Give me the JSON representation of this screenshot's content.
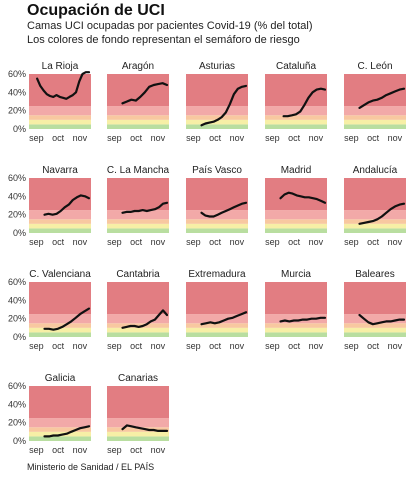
{
  "title": "Ocupación de UCI",
  "subtitle_line1": "Camas UCI ocupadas por pacientes Covid-19 (% del total)",
  "subtitle_line2": "Los colores de fondo representan el semáforo de riesgo",
  "source": "Ministerio de Sanidad / EL PAÍS",
  "colors": {
    "line": "#111111",
    "green": "#b9dea0",
    "yellow": "#f7efa6",
    "orange": "#f8c8a0",
    "light_red": "#f2a9a8",
    "red": "#e27d82"
  },
  "chart_data": {
    "type": "line",
    "x_ticks": [
      "sep",
      "oct",
      "nov"
    ],
    "ylim": [
      0,
      60
    ],
    "y_ticks": [
      "0%",
      "20%",
      "40%",
      "60%"
    ],
    "background_bands": [
      {
        "from": 0,
        "to": 5,
        "color": "green"
      },
      {
        "from": 5,
        "to": 10,
        "color": "yellow"
      },
      {
        "from": 10,
        "to": 15,
        "color": "orange"
      },
      {
        "from": 15,
        "to": 25,
        "color": "light_red"
      },
      {
        "from": 25,
        "to": 60,
        "color": "red"
      }
    ],
    "panels": [
      {
        "name": "La Rioja",
        "start": 0.13,
        "values": [
          55,
          47,
          42,
          38,
          36,
          35,
          37,
          35,
          34,
          33,
          35,
          37,
          40,
          52,
          60,
          62,
          62
        ]
      },
      {
        "name": "Aragón",
        "start": 0.25,
        "values": [
          28,
          30,
          32,
          31,
          35,
          40,
          46,
          48,
          49,
          50,
          48
        ]
      },
      {
        "name": "Asturias",
        "start": 0.25,
        "values": [
          4,
          6,
          7,
          8,
          10,
          13,
          18,
          27,
          38,
          44,
          46,
          47
        ]
      },
      {
        "name": "Cataluña",
        "start": 0.3,
        "values": [
          14,
          14,
          15,
          16,
          19,
          26,
          34,
          40,
          43,
          44,
          43
        ]
      },
      {
        "name": "C. León",
        "start": 0.25,
        "values": [
          23,
          26,
          29,
          31,
          32,
          34,
          37,
          39,
          41,
          43,
          44
        ]
      },
      {
        "name": "Navarra",
        "start": 0.25,
        "values": [
          20,
          21,
          20,
          21,
          24,
          28,
          31,
          36,
          39,
          41,
          40,
          38
        ]
      },
      {
        "name": "C. La Mancha",
        "start": 0.25,
        "values": [
          22,
          23,
          23,
          24,
          24,
          25,
          24,
          25,
          26,
          28,
          32,
          33
        ]
      },
      {
        "name": "País Vasco",
        "start": 0.25,
        "values": [
          22,
          19,
          18,
          18,
          20,
          22,
          24,
          26,
          28,
          30,
          32,
          33
        ]
      },
      {
        "name": "Madrid",
        "start": 0.25,
        "values": [
          38,
          42,
          44,
          43,
          41,
          40,
          39,
          39,
          38,
          37,
          35,
          33
        ]
      },
      {
        "name": "Andalucía",
        "start": 0.25,
        "values": [
          10,
          11,
          12,
          13,
          15,
          18,
          22,
          26,
          29,
          31,
          32
        ]
      },
      {
        "name": "C. Valenciana",
        "start": 0.25,
        "values": [
          9,
          9,
          8,
          9,
          11,
          14,
          17,
          21,
          25,
          28,
          31
        ]
      },
      {
        "name": "Cantabria",
        "start": 0.25,
        "values": [
          10,
          11,
          12,
          12,
          11,
          12,
          14,
          17,
          19,
          24,
          29,
          24
        ]
      },
      {
        "name": "Extremadura",
        "start": 0.25,
        "values": [
          14,
          15,
          16,
          15,
          16,
          18,
          20,
          21,
          23,
          25,
          27
        ]
      },
      {
        "name": "Murcia",
        "start": 0.25,
        "values": [
          17,
          18,
          17,
          18,
          18,
          19,
          19,
          20,
          20,
          21,
          21
        ]
      },
      {
        "name": "Baleares",
        "start": 0.25,
        "values": [
          24,
          20,
          16,
          14,
          15,
          16,
          17,
          17,
          18,
          19,
          19
        ]
      },
      {
        "name": "Galicia",
        "start": 0.25,
        "values": [
          5,
          5,
          6,
          6,
          7,
          8,
          10,
          12,
          14,
          15,
          16
        ]
      },
      {
        "name": "Canarias",
        "start": 0.25,
        "values": [
          13,
          17,
          16,
          15,
          14,
          13,
          12,
          12,
          11,
          11,
          11
        ]
      }
    ]
  }
}
